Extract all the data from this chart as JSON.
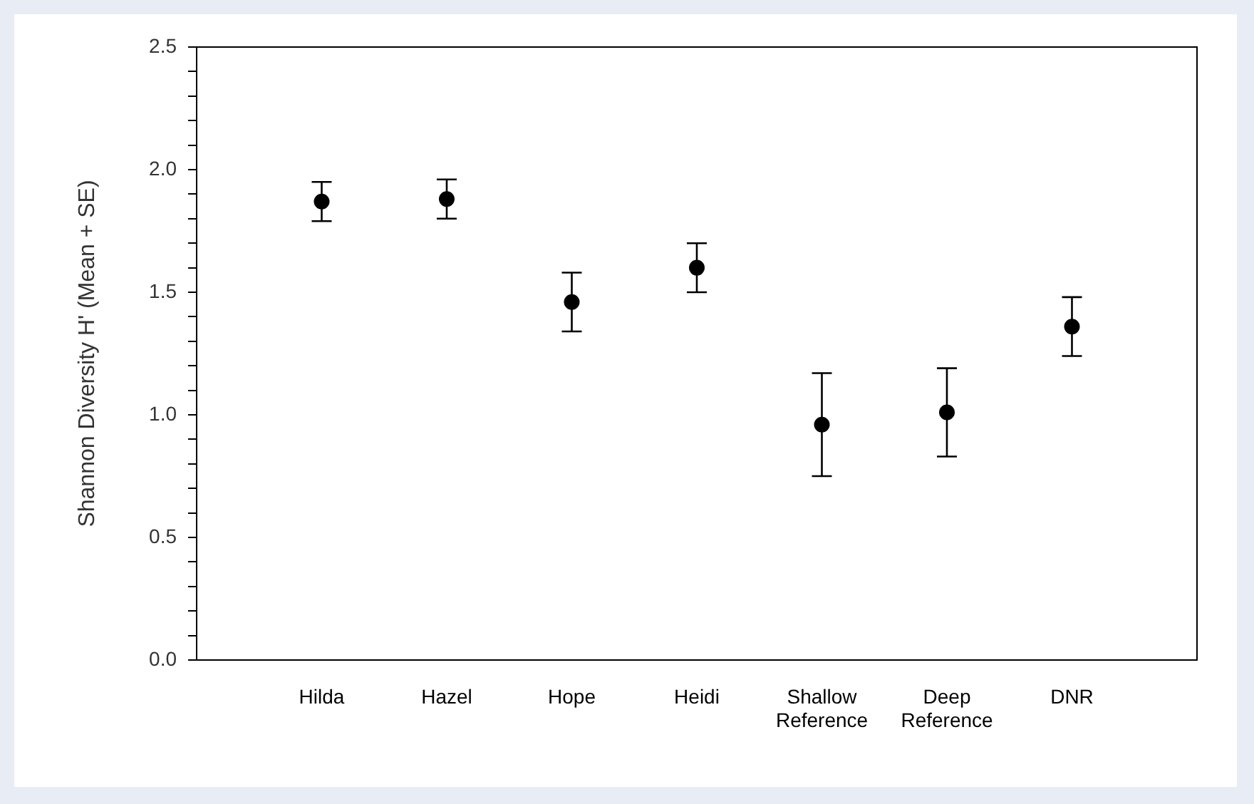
{
  "chart_data": {
    "type": "scatter",
    "ylabel": "Shannon Diversity H' (Mean + SE)",
    "categories": [
      "Hilda",
      "Hazel",
      "Hope",
      "Heidi",
      "Shallow Reference",
      "Deep Reference",
      "DNR"
    ],
    "values": [
      1.87,
      1.88,
      1.46,
      1.6,
      0.96,
      1.01,
      1.36
    ],
    "errors": [
      0.08,
      0.08,
      0.12,
      0.1,
      0.21,
      0.18,
      0.12
    ],
    "color": "#000000",
    "marker": "circle",
    "grid": false,
    "legend": false,
    "ylim": [
      0,
      2.5
    ],
    "yticks": [
      {
        "value": 0,
        "label": "0.0"
      },
      {
        "value": 0.1,
        "label": null
      },
      {
        "value": 0.2,
        "label": null
      },
      {
        "value": 0.3,
        "label": null
      },
      {
        "value": 0.4,
        "label": null
      },
      {
        "value": 0.5,
        "label": "0.5"
      },
      {
        "value": 0.6,
        "label": null
      },
      {
        "value": 0.7,
        "label": null
      },
      {
        "value": 0.8,
        "label": null
      },
      {
        "value": 0.9,
        "label": null
      },
      {
        "value": 1.0,
        "label": "1.0"
      },
      {
        "value": 1.1,
        "label": null
      },
      {
        "value": 1.2,
        "label": null
      },
      {
        "value": 1.3,
        "label": null
      },
      {
        "value": 1.4,
        "label": null
      },
      {
        "value": 1.5,
        "label": "1.5"
      },
      {
        "value": 1.6,
        "label": null
      },
      {
        "value": 1.7,
        "label": null
      },
      {
        "value": 1.8,
        "label": null
      },
      {
        "value": 1.9,
        "label": null
      },
      {
        "value": 2.0,
        "label": "2.0"
      },
      {
        "value": 2.1,
        "label": null
      },
      {
        "value": 2.2,
        "label": null
      },
      {
        "value": 2.3,
        "label": null
      },
      {
        "value": 2.4,
        "label": null
      },
      {
        "value": 2.5,
        "label": "2.5"
      }
    ]
  }
}
